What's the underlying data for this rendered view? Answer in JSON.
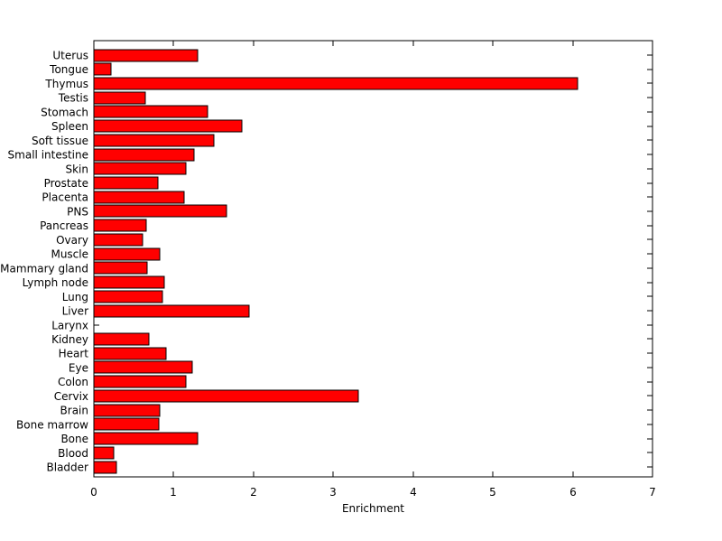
{
  "figure": {
    "background_color": "#ffffff",
    "plot_background_color": "#ffffff"
  },
  "chart_data": {
    "type": "bar",
    "orientation": "horizontal",
    "title": "",
    "xlabel": "Enrichment",
    "ylabel": "",
    "xlim": [
      0,
      7
    ],
    "xticks": [
      0,
      1,
      2,
      3,
      4,
      5,
      6,
      7
    ],
    "grid": false,
    "legend": null,
    "bar_color": "#ff0000",
    "bar_edge_color": "#000000",
    "axis_color": "#000000",
    "categories_order": "top-to-bottom",
    "categories": [
      "Uterus",
      "Tongue",
      "Thymus",
      "Testis",
      "Stomach",
      "Spleen",
      "Soft tissue",
      "Small intestine",
      "Skin",
      "Prostate",
      "Placenta",
      "PNS",
      "Pancreas",
      "Ovary",
      "Muscle",
      "Mammary gland",
      "Lymph node",
      "Lung",
      "Liver",
      "Larynx",
      "Kidney",
      "Heart",
      "Eye",
      "Colon",
      "Cervix",
      "Brain",
      "Bone marrow",
      "Bone",
      "Blood",
      "Bladder"
    ],
    "values": [
      1.3,
      0.21,
      6.06,
      0.65,
      1.43,
      1.85,
      1.5,
      1.26,
      1.15,
      0.8,
      1.13,
      1.66,
      0.66,
      0.61,
      0.83,
      0.67,
      0.88,
      0.86,
      1.94,
      0,
      0.69,
      0.9,
      1.23,
      1.15,
      3.31,
      0.83,
      0.81,
      1.3,
      0.25,
      0.28
    ]
  }
}
